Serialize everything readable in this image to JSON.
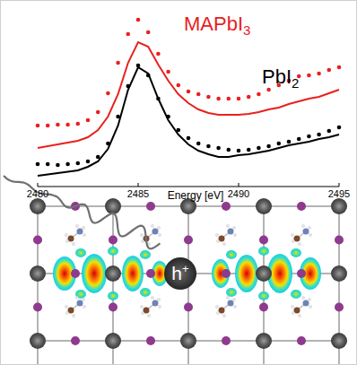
{
  "chart_data": {
    "type": "line",
    "x_label": "Energy [eV]",
    "annotation": "h+",
    "x": [
      2480,
      2480.5,
      2481,
      2481.5,
      2482,
      2482.5,
      2483,
      2483.5,
      2484,
      2484.5,
      2485,
      2485.5,
      2486,
      2486.5,
      2487,
      2487.5,
      2488,
      2488.5,
      2489,
      2489.5,
      2490,
      2490.5,
      2491,
      2491.5,
      2492,
      2492.5,
      2493,
      2493.5,
      2494,
      2494.5,
      2495
    ],
    "xlim": [
      2480,
      2495
    ],
    "xticks": [
      2480,
      2485,
      2490,
      2495
    ],
    "ylim": [
      0,
      100
    ],
    "tick_labels": "x",
    "grid": false,
    "series": [
      {
        "name": "MAPbI3",
        "color": "#e8211e",
        "type": "scatter",
        "marker": "circle",
        "values": [
          34,
          34,
          34.5,
          34.5,
          35,
          37,
          41.5,
          52,
          69,
          85,
          93,
          86,
          74,
          64,
          56.5,
          53,
          51.5,
          50,
          49,
          49,
          49,
          50,
          51.5,
          54,
          56.5,
          59,
          61.5,
          62,
          63,
          65,
          66.5
        ]
      },
      {
        "color": "#e8211e",
        "type": "line",
        "line_style": "solid",
        "values": [
          21.5,
          22.5,
          23.5,
          24.5,
          25.5,
          27.5,
          31.5,
          39,
          51.5,
          69,
          80.5,
          78,
          68,
          59,
          51.5,
          46.5,
          43,
          41,
          40,
          40,
          40,
          40.5,
          41.5,
          43,
          44,
          46,
          47.5,
          49,
          50,
          52,
          54
        ]
      },
      {
        "name": "PbI2",
        "color": "#000000",
        "type": "scatter",
        "marker": "circle",
        "values": [
          12.5,
          12.5,
          12,
          12.5,
          13,
          14,
          16.5,
          24,
          39,
          56,
          67.5,
          62,
          49,
          39,
          31.5,
          27,
          24,
          22.5,
          21.5,
          20.5,
          20,
          20.5,
          21.5,
          22.5,
          24,
          25,
          26.5,
          28,
          29,
          31,
          33
        ]
      },
      {
        "color": "#000000",
        "type": "line",
        "line_style": "solid",
        "values": [
          6,
          6.8,
          7.5,
          8.2,
          9,
          11,
          14,
          21,
          34,
          54,
          66.5,
          63,
          49,
          37,
          29,
          23.5,
          20,
          18,
          16.5,
          16.5,
          17.5,
          18,
          19,
          20,
          21.5,
          23,
          24,
          25,
          26.5,
          27.5,
          29
        ]
      }
    ]
  }
}
